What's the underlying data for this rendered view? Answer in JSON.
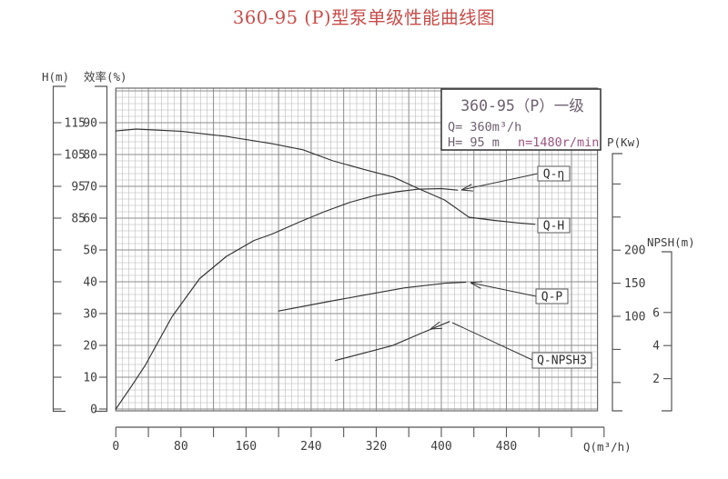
{
  "title": {
    "text": "360-95 (P)型泵单级性能曲线图"
  },
  "colors": {
    "title": "#c84b48",
    "legend_text": "#6e6070",
    "legend_speed": "#9d5380",
    "axis_text": "#3d3d3d",
    "curve": "#333333",
    "grid_minor": "#b6b6b6",
    "grid_major": "#8d8d8d",
    "grid_border": "#6a6a6a"
  },
  "legend_box": {
    "model": "360-95（P）一级",
    "flow": "Q= 360m³/h",
    "head": "H= 95 m",
    "speed": "n=1480r/min"
  },
  "axes": {
    "head_label": "H(m)",
    "efficiency_label": "效率(%)",
    "power_label": "P(Kw)",
    "npsh_label": "NPSH(m)",
    "flow_label": "Q(m³/h)"
  },
  "chart_data": {
    "type": "line",
    "grid": true,
    "x_axis": {
      "label": "Q(m³/h)",
      "range": [
        0,
        592
      ],
      "major_tick_step": 40,
      "labeled_ticks": [
        0,
        80,
        160,
        240,
        320,
        400,
        480
      ]
    },
    "y_axes": {
      "head_m": {
        "label": "H(m)",
        "labeled_ticks": [
          115,
          105,
          95,
          85
        ]
      },
      "efficiency_pct": {
        "label": "效率(%)",
        "labeled_ticks": [
          90,
          80,
          70,
          60,
          50,
          40,
          30,
          20,
          10,
          0
        ],
        "range": [
          0,
          100
        ]
      },
      "power_kw": {
        "label": "P(Kw)",
        "labeled_ticks": [
          200,
          150,
          100
        ]
      },
      "npsh_m": {
        "label": "NPSH(m)",
        "labeled_ticks": [
          6,
          4,
          2
        ]
      }
    },
    "series": [
      {
        "name": "Q-H",
        "label": "Q-H",
        "axis": "head_m",
        "points": [
          [
            0,
            112.4
          ],
          [
            25,
            113
          ],
          [
            80,
            112.3
          ],
          [
            136,
            110.7
          ],
          [
            192,
            108.4
          ],
          [
            230,
            106.5
          ],
          [
            267,
            103
          ],
          [
            305,
            100.3
          ],
          [
            341,
            97.9
          ],
          [
            371,
            94.4
          ],
          [
            404,
            90.7
          ],
          [
            434,
            85.3
          ],
          [
            465,
            84.3
          ],
          [
            495,
            83.5
          ],
          [
            515,
            83.1
          ]
        ]
      },
      {
        "name": "Q-η",
        "label": "Q-η",
        "axis": "efficiency_pct",
        "points": [
          [
            0,
            0
          ],
          [
            20,
            7.5
          ],
          [
            36,
            13.7
          ],
          [
            69,
            29
          ],
          [
            103,
            41
          ],
          [
            136,
            48
          ],
          [
            170,
            53
          ],
          [
            192,
            55
          ],
          [
            225,
            58.7
          ],
          [
            256,
            62
          ],
          [
            288,
            65
          ],
          [
            318,
            67.1
          ],
          [
            345,
            68.3
          ],
          [
            371,
            69.1
          ],
          [
            400,
            69.3
          ],
          [
            420,
            68.8
          ]
        ]
      },
      {
        "name": "Q-P",
        "label": "Q-P",
        "axis": "power_kw",
        "points": [
          [
            200,
            108
          ],
          [
            260,
            122
          ],
          [
            305,
            132
          ],
          [
            355,
            143
          ],
          [
            405,
            150
          ],
          [
            430,
            151.5
          ]
        ]
      },
      {
        "name": "Q-NPSH3",
        "label": "Q-NPSH3",
        "axis": "npsh_m",
        "points": [
          [
            270,
            3.1
          ],
          [
            340,
            4.0
          ],
          [
            378,
            4.8
          ],
          [
            410,
            5.45
          ]
        ]
      }
    ],
    "duty_point": {
      "Q": "360m³/h",
      "H": "95 m",
      "n": "1480r/min"
    }
  }
}
